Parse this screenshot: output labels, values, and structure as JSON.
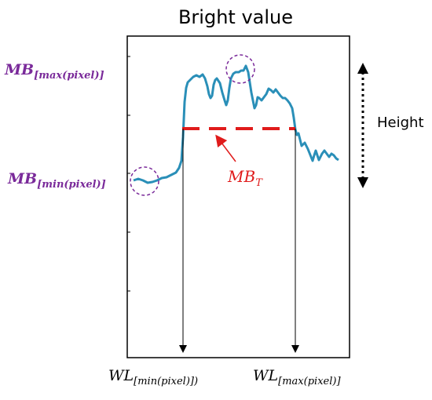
{
  "title": "Bright value",
  "labels": {
    "mb_max_main": "MB",
    "mb_max_sub": "[max(pixel)]",
    "mb_min_main": "MB",
    "mb_min_sub": "[min(pixel)]",
    "mbt_main": "MB",
    "mbt_sub": "T",
    "height": "Height",
    "wl_min_main": "WL",
    "wl_min_sub": "[min(pixel)])",
    "wl_max_main": "WL",
    "wl_max_sub": "[max(pixel)]"
  },
  "colors": {
    "curve": "#2a8fb8",
    "threshold": "#e01b1b",
    "annotation_text": "#7a2a9a",
    "frame": "#000000"
  }
}
